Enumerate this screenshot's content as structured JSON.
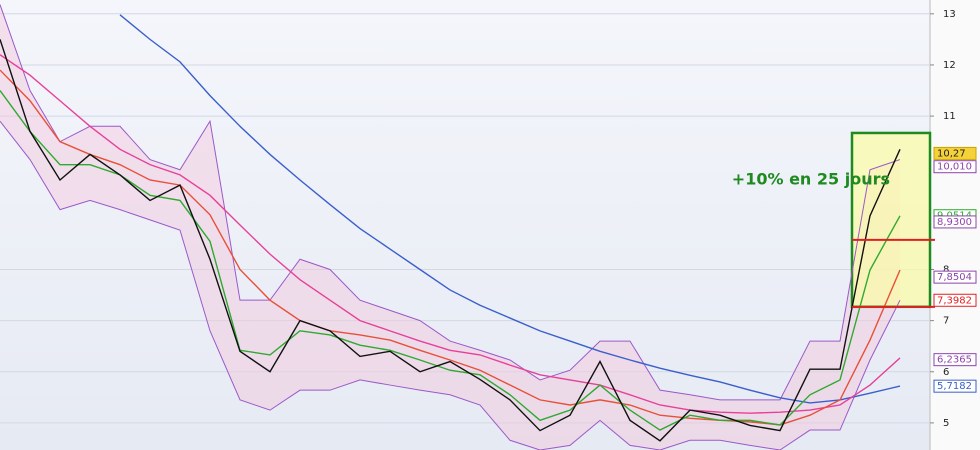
{
  "chart_data": {
    "type": "line",
    "annotation": "+10% en 25 jours",
    "x": [
      0,
      1,
      2,
      3,
      4,
      5,
      6,
      7,
      8,
      9,
      10,
      11,
      12,
      13,
      14,
      15,
      16,
      17,
      18,
      19,
      20,
      21,
      22,
      23,
      24,
      25,
      26,
      27,
      28,
      29,
      30
    ],
    "xlim": [
      0,
      31
    ],
    "ylim": [
      4.47,
      13.27
    ],
    "yticks": [
      5,
      6,
      7,
      8,
      11,
      12,
      13
    ],
    "grid": true,
    "series": [
      {
        "color": "#9b59c9",
        "role": "band-upper",
        "values": [
          13.18,
          11.5,
          10.5,
          10.8,
          10.8,
          10.15,
          9.95,
          10.9,
          7.4,
          7.4,
          8.2,
          8.0,
          7.4,
          7.2,
          7.0,
          6.6,
          6.42,
          6.23,
          5.84,
          6.03,
          6.6,
          6.6,
          5.64,
          5.55,
          5.45,
          5.45,
          5.45,
          6.6,
          6.6,
          9.95,
          10.15
        ]
      },
      {
        "color": "#9b59c9",
        "role": "band-lower",
        "values": [
          10.9,
          10.15,
          9.17,
          9.35,
          9.17,
          8.97,
          8.77,
          6.8,
          5.45,
          5.25,
          5.64,
          5.64,
          5.84,
          5.74,
          5.64,
          5.55,
          5.35,
          4.66,
          4.47,
          4.56,
          5.05,
          4.56,
          4.47,
          4.66,
          4.66,
          4.56,
          4.47,
          4.86,
          4.86,
          6.23,
          7.4
        ]
      },
      {
        "color": "#3a5fcd",
        "values": [
          null,
          null,
          null,
          null,
          12.98,
          12.5,
          12.06,
          11.4,
          10.8,
          10.25,
          9.75,
          9.27,
          8.8,
          8.4,
          8.0,
          7.6,
          7.3,
          7.05,
          6.8,
          6.6,
          6.4,
          6.23,
          6.07,
          5.93,
          5.8,
          5.64,
          5.49,
          5.39,
          5.45,
          5.58,
          5.72
        ]
      },
      {
        "color": "#e8409a",
        "values": [
          12.2,
          11.8,
          11.3,
          10.8,
          10.35,
          10.05,
          9.85,
          9.45,
          8.87,
          8.3,
          7.8,
          7.4,
          7.0,
          6.8,
          6.6,
          6.42,
          6.33,
          6.13,
          5.94,
          5.84,
          5.74,
          5.55,
          5.35,
          5.25,
          5.21,
          5.19,
          5.21,
          5.25,
          5.35,
          5.74,
          6.27
        ]
      },
      {
        "color": "#e8503a",
        "values": [
          11.9,
          11.3,
          10.5,
          10.25,
          10.05,
          9.75,
          9.65,
          9.07,
          8.0,
          7.4,
          7.0,
          6.8,
          6.72,
          6.62,
          6.42,
          6.23,
          6.03,
          5.74,
          5.45,
          5.35,
          5.45,
          5.35,
          5.15,
          5.09,
          5.05,
          5.02,
          4.96,
          5.15,
          5.45,
          6.62,
          7.99
        ]
      },
      {
        "color": "#2eaa2e",
        "values": [
          11.5,
          10.7,
          10.05,
          10.05,
          9.85,
          9.45,
          9.35,
          8.55,
          6.42,
          6.33,
          6.8,
          6.72,
          6.52,
          6.42,
          6.23,
          6.03,
          5.94,
          5.55,
          5.05,
          5.25,
          5.74,
          5.25,
          4.86,
          5.15,
          5.05,
          5.05,
          4.96,
          5.55,
          5.84,
          7.99,
          9.05
        ]
      },
      {
        "color": "#111111",
        "values": [
          12.5,
          10.7,
          9.75,
          10.25,
          9.85,
          9.35,
          9.65,
          8.2,
          6.4,
          6.0,
          7.0,
          6.8,
          6.3,
          6.4,
          6.0,
          6.2,
          5.85,
          5.45,
          4.85,
          5.15,
          6.2,
          5.05,
          4.65,
          5.25,
          5.15,
          4.95,
          4.85,
          6.05,
          6.05,
          9.05,
          10.35
        ]
      }
    ],
    "highlight": {
      "color": "#1f8a1f",
      "xlim": [
        28.4,
        31
      ],
      "ylim": [
        7.27,
        10.67
      ]
    },
    "levels": [
      {
        "color": "#e02020",
        "value": 8.58
      },
      {
        "color": "#e02020",
        "value": 7.27
      }
    ],
    "price_labels": [
      {
        "value": 10.27,
        "label": "10,27",
        "color": "#c9a400",
        "fill": "#f5d23a"
      },
      {
        "value": 10.01,
        "label": "10,010",
        "color": "#8e44ad",
        "fill": "#ffffff"
      },
      {
        "value": 9.0514,
        "label": "9,0514",
        "color": "#2eaa2e",
        "fill": "#ffffff"
      },
      {
        "value": 8.93,
        "label": "8,9300",
        "color": "#8e44ad",
        "fill": "#ffffff"
      },
      {
        "value": 7.8504,
        "label": "7,8504",
        "color": "#8e44ad",
        "fill": "#ffffff"
      },
      {
        "value": 7.3982,
        "label": "7,3982",
        "color": "#e02020",
        "fill": "#ffffff"
      },
      {
        "value": 6.2365,
        "label": "6,2365",
        "color": "#8e44ad",
        "fill": "#ffffff"
      },
      {
        "value": 5.7182,
        "label": "5,7182",
        "color": "#3a5fcd",
        "fill": "#ffffff"
      }
    ]
  }
}
